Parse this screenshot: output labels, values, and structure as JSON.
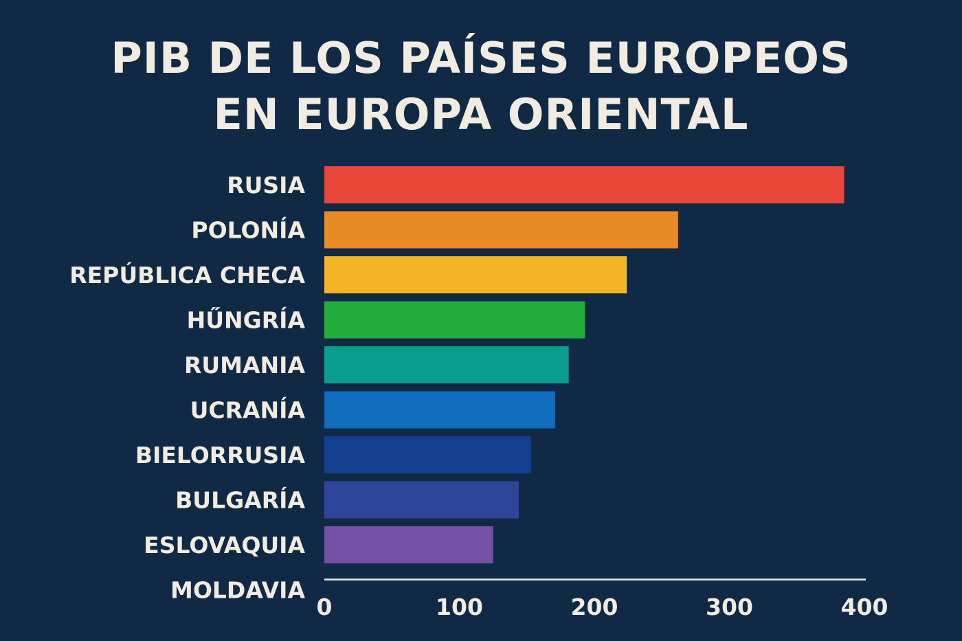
{
  "chart_data": {
    "type": "bar",
    "orientation": "horizontal",
    "title": "PIB DE LOS PAÍSES EUROPEOS EN EUROPA ORIENTAL",
    "title_lines": [
      "PIB DE LOS PAÍSES EUROPEOS",
      "EN EUROPA ORIENTAL"
    ],
    "xlabel": "",
    "ylabel": "",
    "categories": [
      "RUSIA",
      "POLONÍA",
      "REPÚBLICA CHECA",
      "HŰNGRÍA",
      "RUMANIA",
      "UCRANÍA",
      "BIELORRUSIA",
      "BULGARÍA",
      "ESLOVAQUIA",
      "MOLDAVIA"
    ],
    "values": [
      385,
      262,
      224,
      193,
      181,
      171,
      153,
      144,
      125,
      0
    ],
    "xlim": [
      0,
      400
    ],
    "xticks": [
      0,
      100,
      200,
      300,
      400
    ],
    "colors": [
      "#e8463a",
      "#e88a26",
      "#f6b525",
      "#22ad3c",
      "#0a9e8f",
      "#0f6cbc",
      "#123f8e",
      "#2e4599",
      "#7650a5",
      "#e8463a"
    ],
    "grid": false,
    "legend": "none"
  }
}
